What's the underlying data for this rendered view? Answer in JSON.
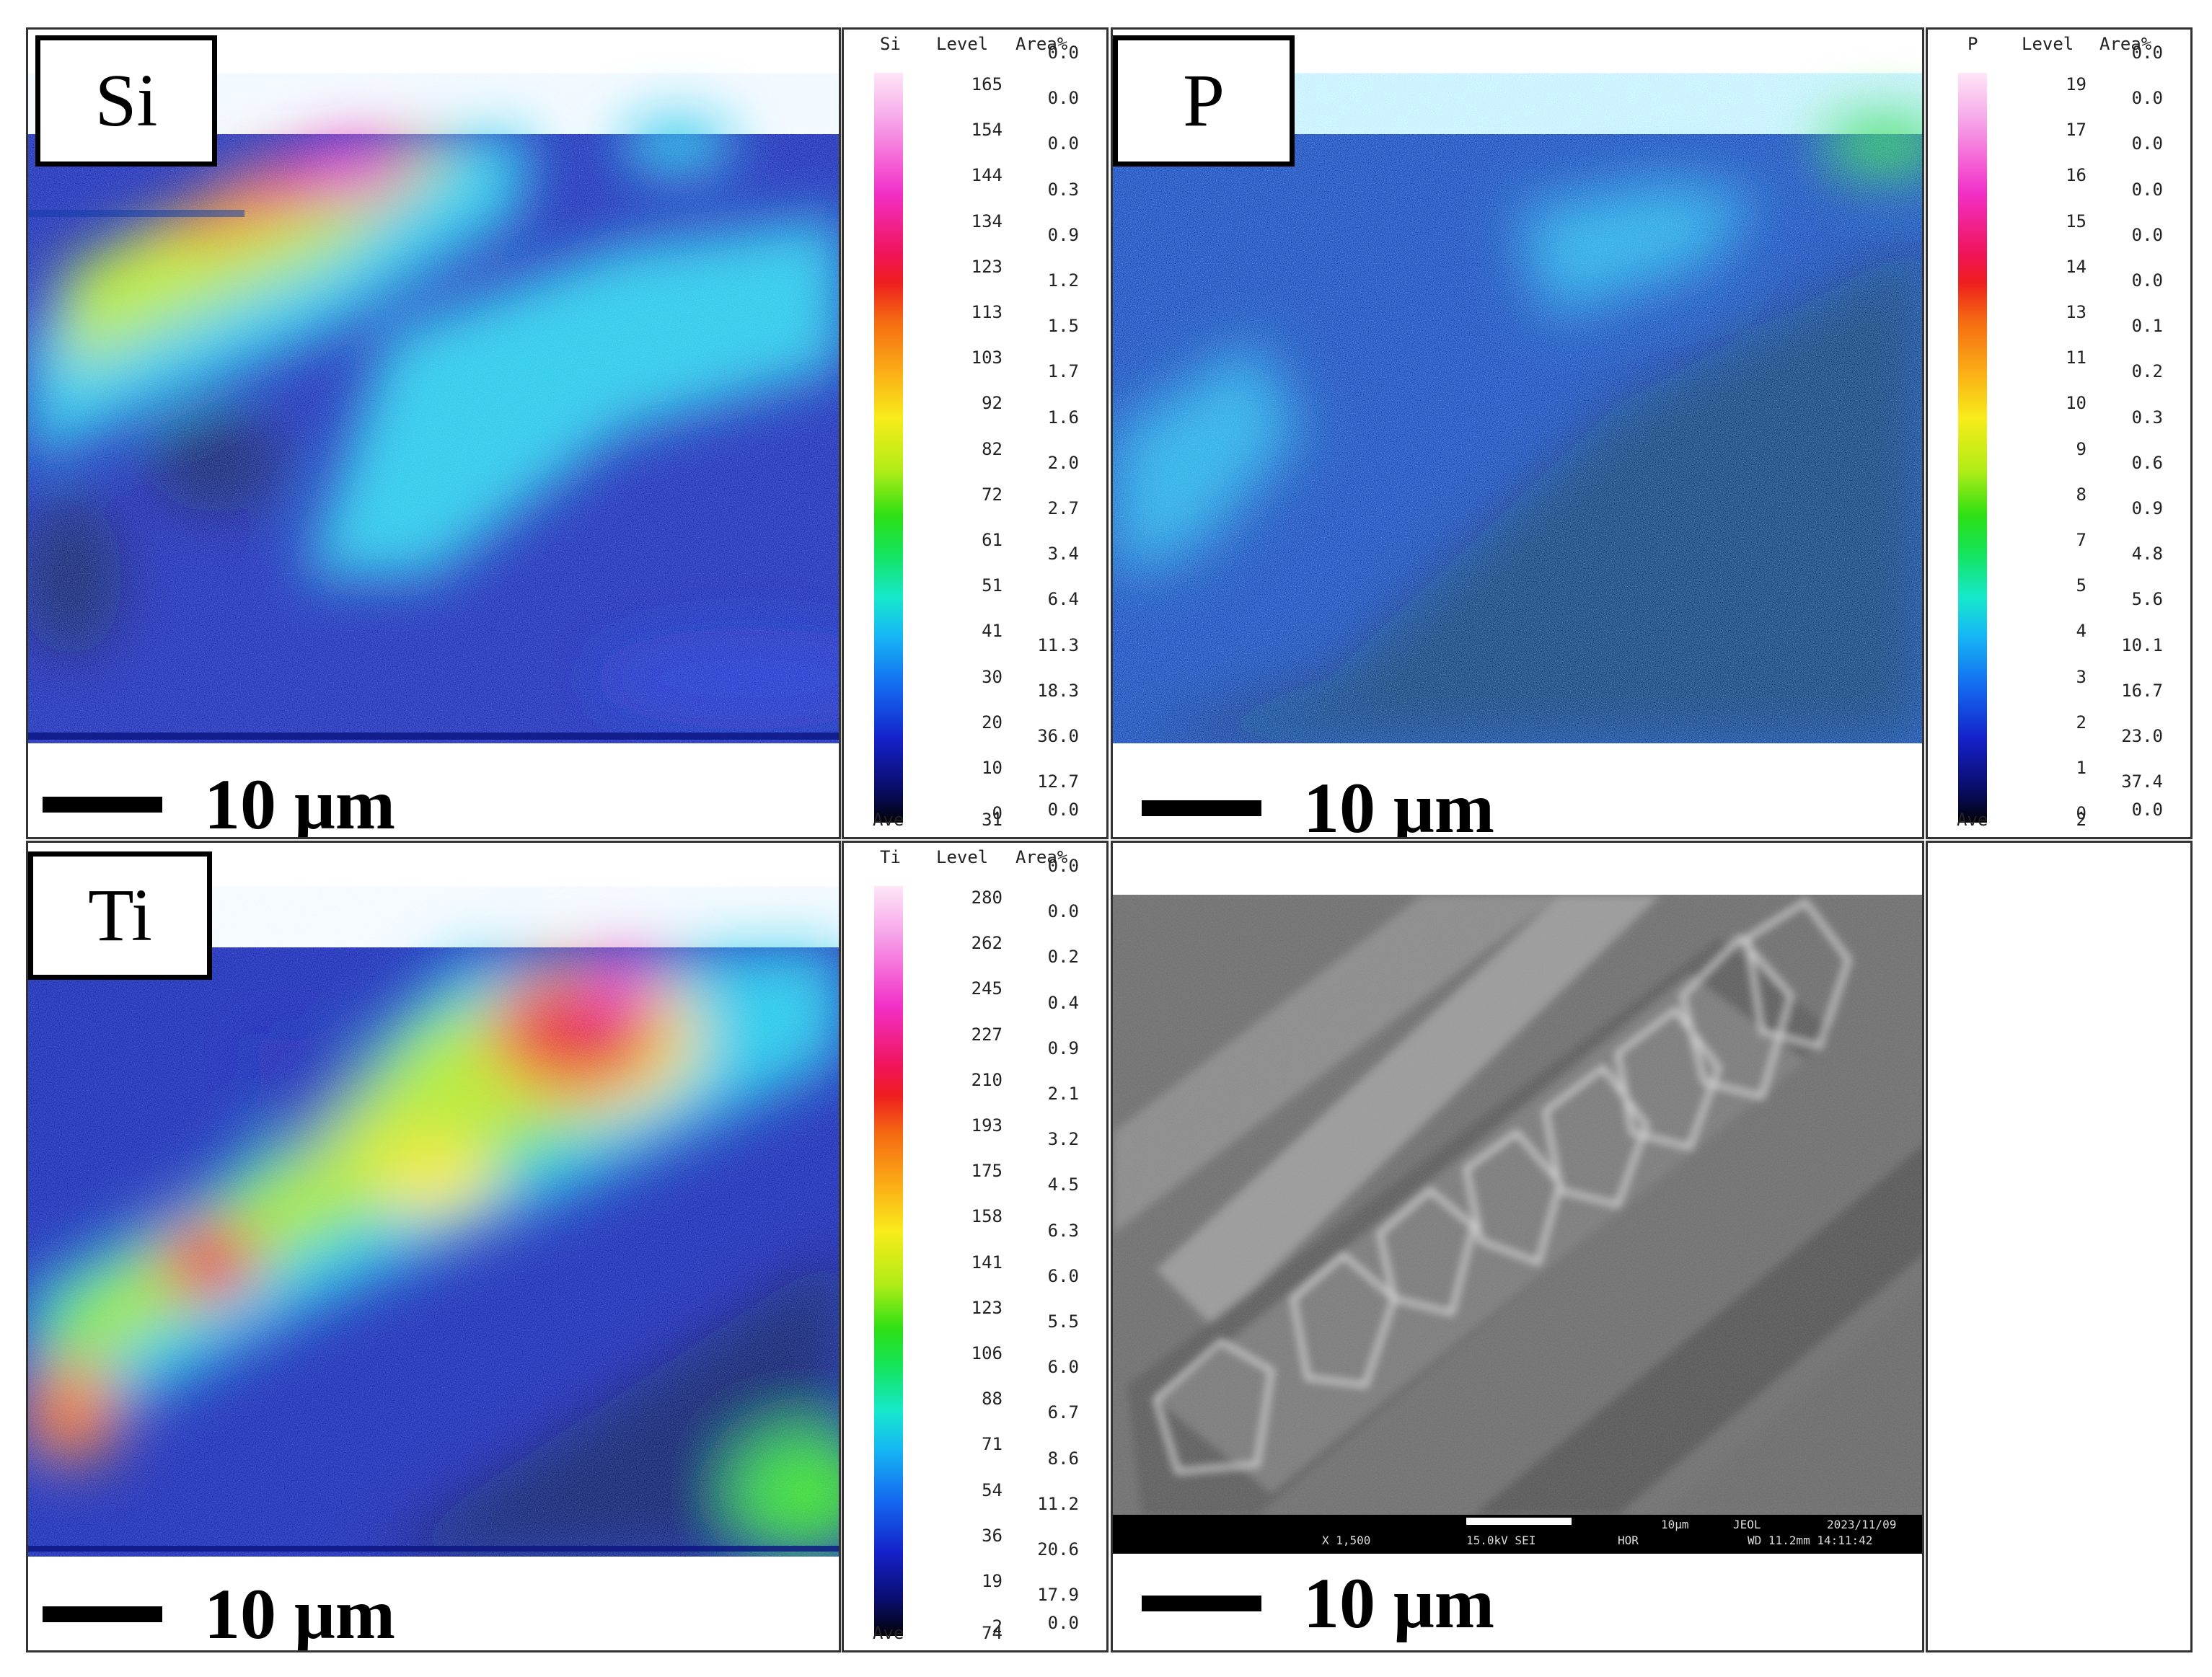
{
  "panels": {
    "si": {
      "label": "Si",
      "scale": "10 μm"
    },
    "p": {
      "label": "P",
      "scale": "10 μm"
    },
    "ti": {
      "label": "Ti",
      "scale": "10 μm"
    },
    "sem": {
      "scale": "10 μm"
    }
  },
  "legend_header": {
    "level": "Level",
    "area": "Area%"
  },
  "ave_label": "Ave",
  "legends": {
    "si": {
      "element": "Si",
      "levels": [
        "165",
        "154",
        "144",
        "134",
        "123",
        "113",
        "103",
        "92",
        "82",
        "72",
        "61",
        "51",
        "41",
        "30",
        "20",
        "10",
        "0",
        "31"
      ],
      "areas": [
        "0.0",
        "0.0",
        "0.0",
        "0.3",
        "0.9",
        "1.2",
        "1.5",
        "1.7",
        "1.6",
        "2.0",
        "2.7",
        "3.4",
        "6.4",
        "11.3",
        "18.3",
        "36.0",
        "12.7",
        "0.0"
      ]
    },
    "p": {
      "element": "P",
      "levels": [
        "19",
        "17",
        "16",
        "15",
        "14",
        "13",
        "11",
        "10",
        "9",
        "8",
        "7",
        "5",
        "4",
        "3",
        "2",
        "1",
        "0",
        "2"
      ],
      "areas": [
        "0.0",
        "0.0",
        "0.0",
        "0.0",
        "0.0",
        "0.0",
        "0.1",
        "0.2",
        "0.3",
        "0.6",
        "0.9",
        "4.8",
        "5.6",
        "10.1",
        "16.7",
        "23.0",
        "37.4",
        "0.0"
      ]
    },
    "ti": {
      "element": "Ti",
      "levels": [
        "280",
        "262",
        "245",
        "227",
        "210",
        "193",
        "175",
        "158",
        "141",
        "123",
        "106",
        "88",
        "71",
        "54",
        "36",
        "19",
        "2",
        "74"
      ],
      "areas": [
        "0.0",
        "0.0",
        "0.2",
        "0.4",
        "0.9",
        "2.1",
        "3.2",
        "4.5",
        "6.3",
        "6.0",
        "5.5",
        "6.0",
        "6.7",
        "8.6",
        "11.2",
        "20.6",
        "17.9",
        "0.0"
      ]
    }
  },
  "sem_info": {
    "magnification": "X 1,500",
    "voltage": "15.0kV SEI",
    "scale": "10μm",
    "maker": "JEOL",
    "date": "2023/11/09",
    "wd": "WD 11.2mm 14:11:42",
    "mode": "HOR"
  },
  "colors": {
    "background": "#020c6e",
    "high": "#f0145a",
    "mid": "#2ee014",
    "low": "#16b8f4"
  }
}
